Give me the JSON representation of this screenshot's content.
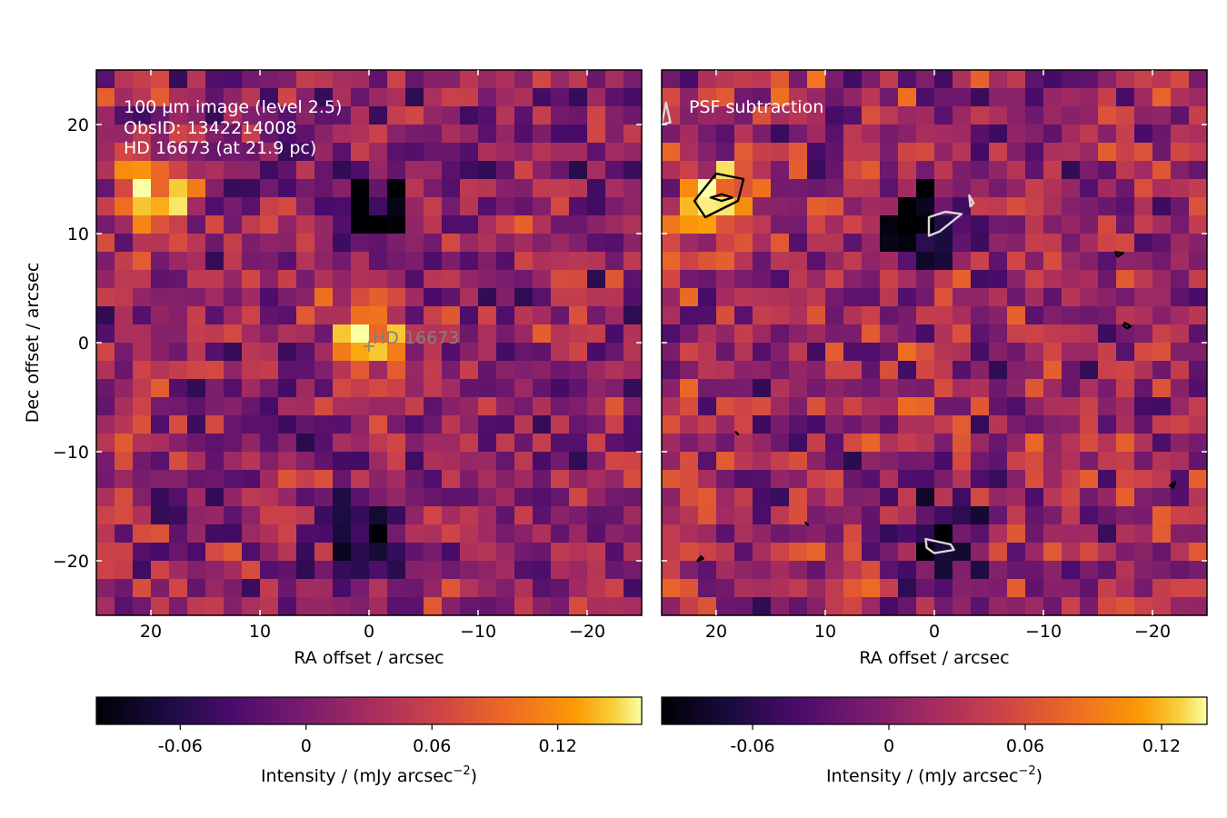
{
  "chart_data": [
    {
      "type": "heatmap",
      "title": "",
      "annotation_lines": [
        "100 µm image (level 2.5)",
        "ObsID: 1342214008",
        "HD 16673 (at 21.9 pc)"
      ],
      "target_label": "HD 16673",
      "target_position": [
        0,
        0
      ],
      "xlabel": "RA offset / arcsec",
      "ylabel": "Dec offset / arcsec",
      "xlim": [
        25,
        -25
      ],
      "ylim": [
        -25,
        25
      ],
      "x_ticks": [
        20,
        10,
        0,
        -10,
        -20
      ],
      "x_tick_labels": [
        "20",
        "10",
        "0",
        "−10",
        "−20"
      ],
      "y_ticks": [
        20,
        10,
        0,
        -10,
        -20
      ],
      "y_tick_labels": [
        "20",
        "10",
        "0",
        "−10",
        "−20"
      ],
      "grid_cells": [
        30,
        30
      ],
      "colormap": "inferno",
      "colorbar": {
        "orientation": "horizontal",
        "range": [
          -0.1,
          0.16
        ],
        "ticks": [
          -0.06,
          0,
          0.06,
          0.12
        ],
        "tick_labels": [
          "-0.06",
          "0",
          "0.06",
          "0.12"
        ],
        "label_prefix": "Intensity / (mJy arcsec",
        "label_exponent": "−2",
        "label_suffix": ")"
      },
      "bright_features": [
        {
          "ra": 0,
          "dec": 1,
          "intensity": 0.15
        },
        {
          "ra": 20,
          "dec": 13,
          "intensity": 0.14
        }
      ],
      "dark_features": [
        {
          "ra": 0,
          "dec": 12,
          "intensity": -0.1
        },
        {
          "ra": 0,
          "dec": -17.5,
          "intensity": -0.1
        }
      ]
    },
    {
      "type": "heatmap",
      "title": "",
      "annotation_lines": [
        "PSF subtraction"
      ],
      "xlabel": "RA offset / arcsec",
      "ylabel": "",
      "xlim": [
        25,
        -25
      ],
      "ylim": [
        -25,
        25
      ],
      "x_ticks": [
        20,
        10,
        0,
        -10,
        -20
      ],
      "x_tick_labels": [
        "20",
        "10",
        "0",
        "−10",
        "−20"
      ],
      "grid_cells": [
        30,
        30
      ],
      "colormap": "inferno",
      "colorbar": {
        "orientation": "horizontal",
        "range": [
          -0.1,
          0.14
        ],
        "ticks": [
          -0.06,
          0,
          0.06,
          0.12
        ],
        "tick_labels": [
          "-0.06",
          "0",
          "0.06",
          "0.12"
        ],
        "label_prefix": "Intensity / (mJy arcsec",
        "label_exponent": "−2",
        "label_suffix": ")"
      },
      "contours": [
        {
          "color": "#000000",
          "points": [
            [
              22,
              13
            ],
            [
              20,
              15.5
            ],
            [
              17.5,
              15
            ],
            [
              18,
              13
            ],
            [
              21,
              11.5
            ]
          ]
        },
        {
          "color": "#000000",
          "points": [
            [
              20.5,
              13.3
            ],
            [
              19.5,
              13.6
            ],
            [
              18.5,
              13.3
            ],
            [
              19.5,
              13.0
            ]
          ]
        },
        {
          "color": "#d8d8d8",
          "points": [
            [
              0.5,
              11.5
            ],
            [
              -1,
              12
            ],
            [
              -2.5,
              11.8
            ],
            [
              -0.5,
              10.2
            ],
            [
              0.5,
              9.8
            ]
          ]
        },
        {
          "color": "#d8d8d8",
          "points": [
            [
              -3.2,
              13.5
            ],
            [
              -3.6,
              12.8
            ],
            [
              -3.3,
              12.5
            ]
          ]
        },
        {
          "color": "#d8d8d8",
          "points": [
            [
              24.6,
              22
            ],
            [
              24.2,
              20.2
            ],
            [
              25,
              20
            ]
          ]
        },
        {
          "color": "#d8d8d8",
          "points": [
            [
              0.8,
              -18
            ],
            [
              -1.5,
              -18.5
            ],
            [
              -1.8,
              -19
            ],
            [
              0,
              -19.3
            ],
            [
              0.7,
              -18.8
            ]
          ]
        },
        {
          "color": "#000000",
          "points": [
            [
              -16.6,
              8.3
            ],
            [
              -17.3,
              8.2
            ],
            [
              -16.8,
              7.9
            ]
          ]
        },
        {
          "color": "#000000",
          "points": [
            [
              -17.5,
              1.8
            ],
            [
              -18,
              1.5
            ],
            [
              -17.7,
              1.3
            ],
            [
              -17.3,
              1.6
            ]
          ]
        },
        {
          "color": "#000000",
          "points": [
            [
              -21.6,
              -13.1
            ],
            [
              -22.1,
              -12.8
            ],
            [
              -21.9,
              -13.3
            ]
          ]
        },
        {
          "color": "#000000",
          "points": [
            [
              21.2,
              -19.8
            ],
            [
              21.7,
              -20
            ],
            [
              21.4,
              -19.6
            ]
          ]
        },
        {
          "color": "#000000",
          "points": [
            [
              18.2,
              -8.2
            ],
            [
              18.0,
              -8.4
            ]
          ]
        },
        {
          "color": "#000000",
          "points": [
            [
              11.8,
              -16.5
            ],
            [
              11.6,
              -16.7
            ]
          ]
        }
      ],
      "bright_features": [
        {
          "ra": 20,
          "dec": 13,
          "intensity": 0.13
        }
      ],
      "dark_features": [
        {
          "ra": 1,
          "dec": 11,
          "intensity": -0.1
        },
        {
          "ra": 0,
          "dec": -18,
          "intensity": -0.1
        }
      ]
    }
  ]
}
